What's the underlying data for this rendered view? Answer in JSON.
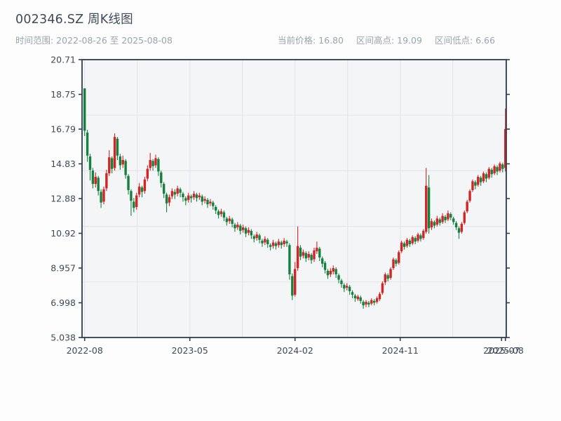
{
  "header": {
    "title": "002346.SZ 周K线图",
    "date_range": "时间范围: 2022-08-26 至 2025-08-08",
    "meta": [
      "当前价格: 16.80",
      "区间高点: 19.09",
      "区间低点: 6.66"
    ]
  },
  "colors": {
    "up": "#d02626",
    "down": "#15813e",
    "plot_bg": "#f4f5f7",
    "grid": "#e3e6ea",
    "spine": "#2e3c50",
    "tick_text": "#3d4a5a",
    "title_text": "#3e4a59",
    "muted_text": "#9aa4ac"
  },
  "chart_data": {
    "type": "candlestick",
    "title": "002346.SZ 周K线图",
    "frequency": "weekly",
    "date_range": {
      "start": "2022-08-26",
      "end": "2025-08-08"
    },
    "stats": {
      "current_price": 16.8,
      "range_high": 19.09,
      "range_low": 6.66
    },
    "convention": "CN: red = up week, green = down week",
    "ylim": [
      5.038,
      20.71
    ],
    "yticks": [
      "20.71",
      "18.75",
      "16.79",
      "14.83",
      "12.88",
      "10.92",
      "8.957",
      "6.998",
      "5.038"
    ],
    "grid": true,
    "xticks": [
      {
        "week": 0,
        "label": "2022-08"
      },
      {
        "week": 19.25,
        "label": null
      },
      {
        "week": 38.5,
        "label": "2023-05"
      },
      {
        "week": 57.75,
        "label": null
      },
      {
        "week": 77,
        "label": "2024-02"
      },
      {
        "week": 96.25,
        "label": null
      },
      {
        "week": 115.5,
        "label": "2024-11"
      },
      {
        "week": 134.75,
        "label": null
      },
      {
        "week": 154,
        "label": "2025-08"
      }
    ],
    "xtick_overlap": {
      "week": 152.6,
      "label": "2025-07"
    },
    "candles_format": [
      "open",
      "high",
      "low",
      "close"
    ],
    "candles": [
      [
        19.09,
        19.09,
        16.4,
        16.7
      ],
      [
        16.6,
        16.75,
        14.95,
        15.3
      ],
      [
        15.25,
        15.4,
        13.9,
        14.5
      ],
      [
        14.45,
        14.6,
        13.45,
        13.7
      ],
      [
        13.7,
        14.35,
        13.5,
        14.1
      ],
      [
        14.05,
        14.15,
        13.05,
        13.3
      ],
      [
        13.25,
        13.4,
        12.35,
        12.65
      ],
      [
        12.7,
        13.55,
        12.55,
        13.4
      ],
      [
        13.45,
        14.5,
        13.3,
        14.3
      ],
      [
        14.3,
        15.6,
        14.15,
        15.2
      ],
      [
        15.15,
        15.25,
        14.3,
        14.55
      ],
      [
        14.6,
        16.55,
        14.45,
        16.35
      ],
      [
        16.25,
        16.35,
        15.05,
        15.3
      ],
      [
        15.25,
        15.4,
        14.5,
        14.75
      ],
      [
        14.8,
        15.3,
        14.6,
        15.05
      ],
      [
        15.0,
        15.1,
        14.0,
        14.2
      ],
      [
        14.15,
        14.25,
        13.1,
        13.35
      ],
      [
        13.3,
        13.4,
        11.9,
        12.75
      ],
      [
        12.7,
        12.9,
        12.1,
        12.35
      ],
      [
        12.4,
        13.2,
        12.25,
        13.05
      ],
      [
        13.1,
        13.75,
        12.95,
        13.55
      ],
      [
        13.5,
        13.6,
        12.95,
        13.25
      ],
      [
        13.3,
        14.1,
        13.15,
        13.95
      ],
      [
        14.0,
        14.75,
        13.85,
        14.55
      ],
      [
        14.6,
        15.45,
        14.45,
        15.05
      ],
      [
        15.0,
        15.1,
        14.45,
        14.7
      ],
      [
        14.75,
        15.35,
        14.6,
        15.15
      ],
      [
        15.1,
        15.2,
        14.15,
        14.4
      ],
      [
        14.35,
        14.45,
        13.5,
        13.75
      ],
      [
        13.7,
        13.8,
        12.9,
        13.15
      ],
      [
        13.1,
        13.2,
        12.1,
        12.6
      ],
      [
        12.65,
        13.1,
        12.45,
        12.95
      ],
      [
        13.0,
        13.45,
        12.85,
        13.3
      ],
      [
        13.25,
        13.4,
        12.85,
        13.1
      ],
      [
        13.15,
        13.6,
        13.0,
        13.45
      ],
      [
        13.4,
        13.5,
        12.95,
        13.2
      ],
      [
        13.15,
        13.25,
        12.7,
        12.95
      ],
      [
        12.9,
        13.0,
        12.5,
        12.75
      ],
      [
        12.8,
        13.2,
        12.65,
        13.05
      ],
      [
        13.0,
        13.1,
        12.65,
        12.9
      ],
      [
        12.95,
        13.3,
        12.8,
        13.15
      ],
      [
        13.1,
        13.2,
        12.7,
        12.9
      ],
      [
        12.95,
        13.2,
        12.8,
        13.05
      ],
      [
        13.0,
        13.1,
        12.5,
        12.7
      ],
      [
        12.75,
        13.0,
        12.6,
        12.85
      ],
      [
        12.8,
        12.9,
        12.35,
        12.55
      ],
      [
        12.6,
        12.85,
        12.45,
        12.7
      ],
      [
        12.65,
        12.75,
        12.25,
        12.45
      ],
      [
        12.4,
        12.5,
        12.0,
        12.2
      ],
      [
        12.15,
        12.25,
        11.75,
        11.95
      ],
      [
        12.0,
        12.3,
        11.85,
        12.15
      ],
      [
        12.1,
        12.2,
        11.6,
        11.8
      ],
      [
        11.75,
        11.85,
        11.35,
        11.55
      ],
      [
        11.6,
        11.9,
        11.45,
        11.75
      ],
      [
        11.7,
        11.8,
        11.25,
        11.45
      ],
      [
        11.4,
        11.5,
        11.0,
        11.2
      ],
      [
        11.25,
        11.55,
        11.1,
        11.4
      ],
      [
        11.35,
        11.45,
        10.85,
        11.05
      ],
      [
        11.1,
        11.4,
        10.95,
        11.25
      ],
      [
        11.2,
        11.3,
        10.7,
        10.9
      ],
      [
        10.95,
        11.25,
        10.8,
        11.1
      ],
      [
        11.05,
        11.15,
        10.6,
        10.8
      ],
      [
        10.75,
        10.85,
        10.4,
        10.6
      ],
      [
        10.65,
        11.0,
        10.5,
        10.85
      ],
      [
        10.8,
        10.9,
        10.35,
        10.55
      ],
      [
        10.5,
        10.6,
        10.15,
        10.35
      ],
      [
        10.4,
        10.75,
        10.25,
        10.6
      ],
      [
        10.55,
        10.65,
        10.1,
        10.3
      ],
      [
        10.25,
        10.35,
        9.95,
        10.15
      ],
      [
        10.2,
        10.55,
        10.05,
        10.4
      ],
      [
        10.35,
        10.45,
        10.0,
        10.2
      ],
      [
        10.25,
        10.6,
        10.1,
        10.45
      ],
      [
        10.4,
        10.5,
        10.05,
        10.25
      ],
      [
        10.3,
        10.65,
        10.15,
        10.5
      ],
      [
        10.45,
        10.55,
        10.15,
        10.35
      ],
      [
        10.25,
        10.35,
        8.3,
        8.6
      ],
      [
        8.5,
        8.65,
        7.15,
        7.4
      ],
      [
        7.45,
        9.3,
        7.35,
        8.9
      ],
      [
        8.95,
        11.3,
        8.8,
        10.2
      ],
      [
        10.1,
        10.25,
        9.4,
        9.6
      ],
      [
        9.65,
        10.0,
        9.5,
        9.85
      ],
      [
        9.8,
        9.9,
        9.3,
        9.5
      ],
      [
        9.55,
        9.9,
        9.4,
        9.75
      ],
      [
        9.7,
        9.8,
        9.2,
        9.4
      ],
      [
        9.45,
        10.1,
        9.3,
        9.95
      ],
      [
        9.9,
        10.45,
        9.75,
        10.1
      ],
      [
        10.05,
        10.15,
        9.35,
        9.55
      ],
      [
        9.5,
        9.6,
        9.0,
        9.2
      ],
      [
        9.25,
        9.35,
        8.65,
        8.85
      ],
      [
        8.8,
        8.9,
        8.35,
        8.55
      ],
      [
        8.6,
        8.95,
        8.45,
        8.8
      ],
      [
        8.75,
        9.1,
        8.6,
        8.95
      ],
      [
        8.9,
        9.0,
        8.4,
        8.6
      ],
      [
        8.55,
        8.65,
        8.1,
        8.3
      ],
      [
        8.25,
        8.35,
        7.85,
        8.05
      ],
      [
        8.0,
        8.1,
        7.6,
        7.8
      ],
      [
        7.85,
        8.1,
        7.7,
        7.95
      ],
      [
        7.9,
        8.0,
        7.45,
        7.65
      ],
      [
        7.6,
        7.7,
        7.25,
        7.45
      ],
      [
        7.4,
        7.5,
        7.05,
        7.25
      ],
      [
        7.2,
        7.45,
        7.1,
        7.35
      ],
      [
        7.3,
        7.4,
        6.95,
        7.1
      ],
      [
        7.05,
        7.15,
        6.66,
        6.85
      ],
      [
        6.9,
        7.15,
        6.75,
        7.05
      ],
      [
        7.0,
        7.1,
        6.75,
        6.9
      ],
      [
        6.95,
        7.25,
        6.85,
        7.15
      ],
      [
        7.1,
        7.2,
        6.85,
        7.0
      ],
      [
        7.05,
        7.35,
        6.95,
        7.25
      ],
      [
        7.2,
        7.6,
        7.1,
        7.5
      ],
      [
        7.55,
        8.2,
        7.45,
        8.1
      ],
      [
        8.15,
        8.7,
        8.0,
        8.6
      ],
      [
        8.55,
        8.65,
        8.2,
        8.35
      ],
      [
        8.4,
        9.0,
        8.3,
        8.9
      ],
      [
        8.95,
        9.55,
        8.85,
        9.45
      ],
      [
        9.4,
        9.5,
        9.05,
        9.2
      ],
      [
        9.25,
        9.95,
        9.15,
        9.85
      ],
      [
        9.9,
        10.5,
        9.8,
        10.4
      ],
      [
        10.35,
        10.45,
        10.0,
        10.15
      ],
      [
        10.2,
        10.65,
        10.1,
        10.55
      ],
      [
        10.5,
        10.6,
        10.15,
        10.3
      ],
      [
        10.35,
        10.8,
        10.25,
        10.7
      ],
      [
        10.65,
        10.75,
        10.3,
        10.45
      ],
      [
        10.5,
        10.95,
        10.4,
        10.85
      ],
      [
        10.8,
        10.9,
        10.45,
        10.6
      ],
      [
        10.65,
        11.15,
        10.55,
        11.05
      ],
      [
        11.0,
        14.6,
        10.9,
        13.6
      ],
      [
        13.5,
        14.2,
        10.9,
        11.2
      ],
      [
        11.25,
        11.75,
        11.1,
        11.6
      ],
      [
        11.55,
        11.65,
        11.2,
        11.35
      ],
      [
        11.4,
        11.9,
        11.3,
        11.75
      ],
      [
        11.7,
        11.8,
        11.35,
        11.5
      ],
      [
        11.55,
        12.05,
        11.45,
        11.9
      ],
      [
        11.85,
        11.95,
        11.5,
        11.65
      ],
      [
        11.7,
        12.2,
        11.6,
        12.05
      ],
      [
        12.0,
        12.1,
        11.65,
        11.8
      ],
      [
        11.75,
        11.85,
        11.4,
        11.55
      ],
      [
        11.5,
        11.6,
        11.1,
        11.25
      ],
      [
        11.2,
        11.3,
        10.6,
        10.95
      ],
      [
        11.0,
        11.55,
        10.9,
        11.45
      ],
      [
        11.5,
        12.2,
        11.4,
        12.1
      ],
      [
        12.15,
        12.8,
        12.05,
        12.7
      ],
      [
        12.75,
        13.4,
        12.65,
        13.3
      ],
      [
        13.35,
        13.95,
        13.25,
        13.85
      ],
      [
        13.8,
        13.9,
        13.4,
        13.6
      ],
      [
        13.65,
        14.2,
        13.55,
        14.1
      ],
      [
        14.05,
        14.15,
        13.6,
        13.8
      ],
      [
        13.85,
        14.4,
        13.75,
        14.3
      ],
      [
        14.25,
        14.35,
        13.8,
        14.0
      ],
      [
        14.05,
        14.65,
        13.95,
        14.55
      ],
      [
        14.5,
        14.6,
        14.05,
        14.25
      ],
      [
        14.3,
        14.8,
        14.2,
        14.7
      ],
      [
        14.65,
        14.75,
        14.2,
        14.4
      ],
      [
        14.45,
        14.95,
        14.35,
        14.85
      ],
      [
        14.8,
        14.9,
        14.35,
        14.55
      ],
      [
        14.6,
        17.95,
        14.4,
        16.8
      ]
    ]
  }
}
